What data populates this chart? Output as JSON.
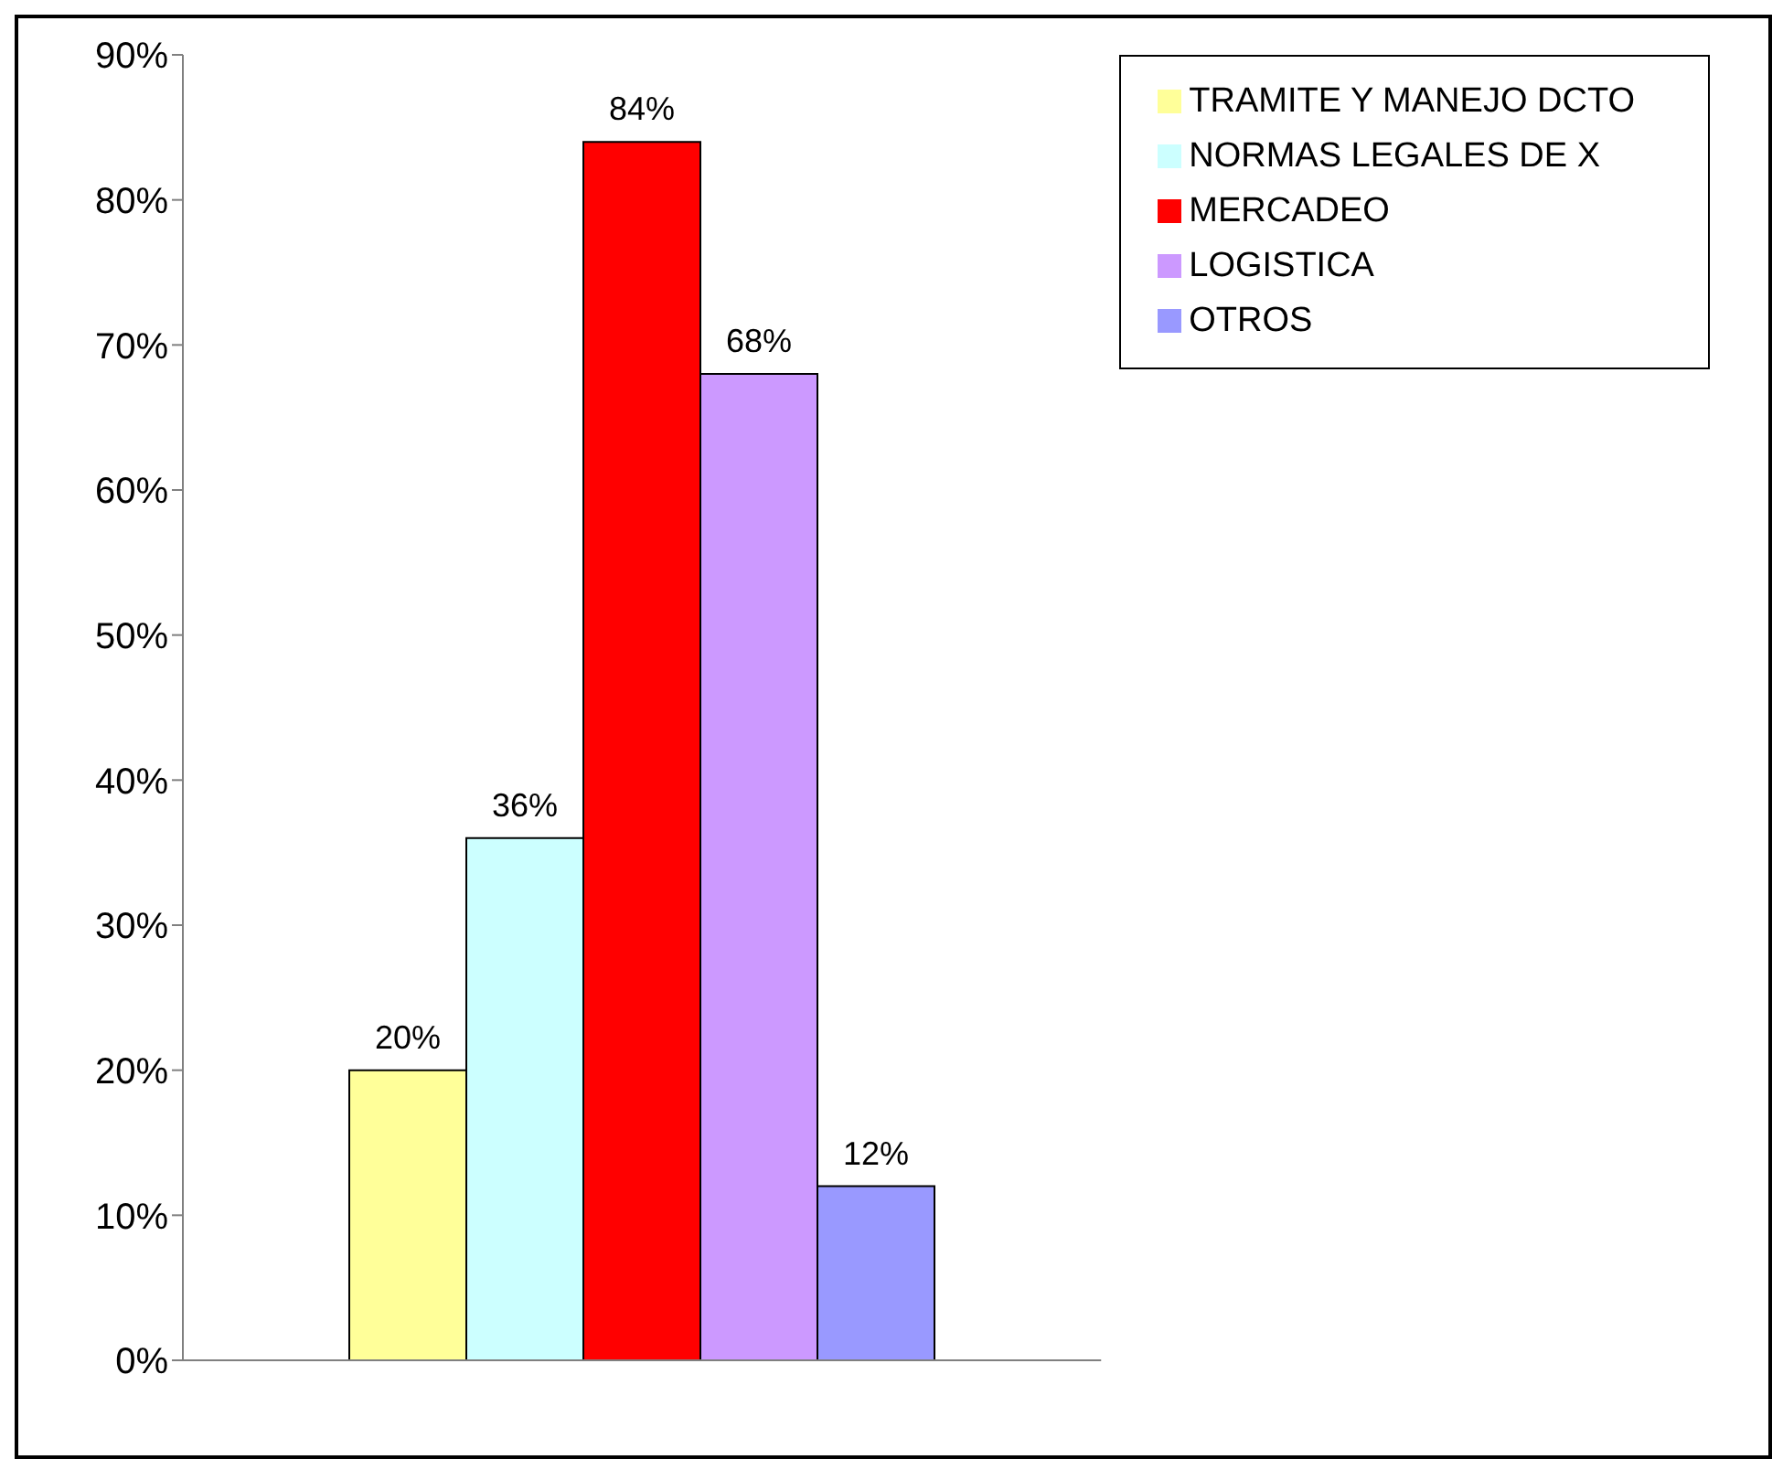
{
  "chart_data": {
    "type": "bar",
    "categories": [
      null
    ],
    "series": [
      {
        "name": "TRAMITE Y MANEJO DCTO",
        "color": "#ffff99",
        "values": [
          20
        ]
      },
      {
        "name": "NORMAS LEGALES DE X",
        "color": "#ccffff",
        "values": [
          36
        ]
      },
      {
        "name": "MERCADEO",
        "color": "#ff0000",
        "values": [
          84
        ]
      },
      {
        "name": "LOGISTICA",
        "color": "#cc99ff",
        "values": [
          68
        ]
      },
      {
        "name": "OTROS",
        "color": "#9999ff",
        "values": [
          12
        ]
      }
    ],
    "ylim": [
      0,
      90
    ],
    "yticks": [
      {
        "value": 0,
        "label": "0%"
      },
      {
        "value": 10,
        "label": "10%"
      },
      {
        "value": 20,
        "label": "20%"
      },
      {
        "value": 30,
        "label": "30%"
      },
      {
        "value": 40,
        "label": "40%"
      },
      {
        "value": 50,
        "label": "50%"
      },
      {
        "value": 60,
        "label": "60%"
      },
      {
        "value": 70,
        "label": "70%"
      },
      {
        "value": 80,
        "label": "80%"
      },
      {
        "value": 90,
        "label": "90%"
      }
    ],
    "value_labels": [
      "20%",
      "36%",
      "84%",
      "68%",
      "12%"
    ],
    "legend": "top right"
  }
}
